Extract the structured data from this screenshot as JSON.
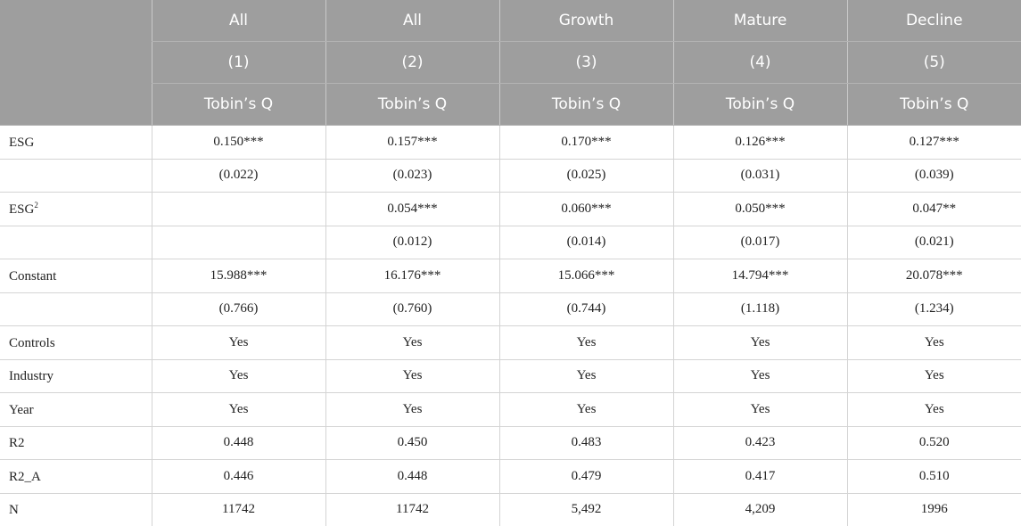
{
  "header": {
    "groups": [
      "All",
      "All",
      "Growth",
      "Mature",
      "Decline"
    ],
    "numbers": [
      "(1)",
      "(2)",
      "(3)",
      "(4)",
      "(5)"
    ],
    "dependent": [
      "Tobin’s Q",
      "Tobin’s Q",
      "Tobin’s Q",
      "Tobin’s Q",
      "Tobin’s Q"
    ]
  },
  "rows": [
    {
      "label": "ESG",
      "label_sup": "",
      "cells": [
        "0.150***",
        "0.157***",
        "0.170***",
        "0.126***",
        "0.127***"
      ]
    },
    {
      "label": "",
      "label_sup": "",
      "cells": [
        "(0.022)",
        "(0.023)",
        "(0.025)",
        "(0.031)",
        "(0.039)"
      ]
    },
    {
      "label": "ESG",
      "label_sup": "2",
      "cells": [
        "",
        "0.054***",
        "0.060***",
        "0.050***",
        "0.047**"
      ]
    },
    {
      "label": "",
      "label_sup": "",
      "cells": [
        "",
        "(0.012)",
        "(0.014)",
        "(0.017)",
        "(0.021)"
      ]
    },
    {
      "label": "Constant",
      "label_sup": "",
      "cells": [
        "15.988***",
        "16.176***",
        "15.066***",
        "14.794***",
        "20.078***"
      ]
    },
    {
      "label": "",
      "label_sup": "",
      "cells": [
        "(0.766)",
        "(0.760)",
        "(0.744)",
        "(1.118)",
        "(1.234)"
      ]
    },
    {
      "label": "Controls",
      "label_sup": "",
      "cells": [
        "Yes",
        "Yes",
        "Yes",
        "Yes",
        "Yes"
      ]
    },
    {
      "label": "Industry",
      "label_sup": "",
      "cells": [
        "Yes",
        "Yes",
        "Yes",
        "Yes",
        "Yes"
      ]
    },
    {
      "label": "Year",
      "label_sup": "",
      "cells": [
        "Yes",
        "Yes",
        "Yes",
        "Yes",
        "Yes"
      ]
    },
    {
      "label": "R2",
      "label_sup": "",
      "cells": [
        "0.448",
        "0.450",
        "0.483",
        "0.423",
        "0.520"
      ]
    },
    {
      "label": "R2_A",
      "label_sup": "",
      "cells": [
        "0.446",
        "0.448",
        "0.479",
        "0.417",
        "0.510"
      ]
    },
    {
      "label": "N",
      "label_sup": "",
      "cells": [
        "11742",
        "11742",
        "5,492",
        "4,209",
        "1996"
      ]
    }
  ]
}
